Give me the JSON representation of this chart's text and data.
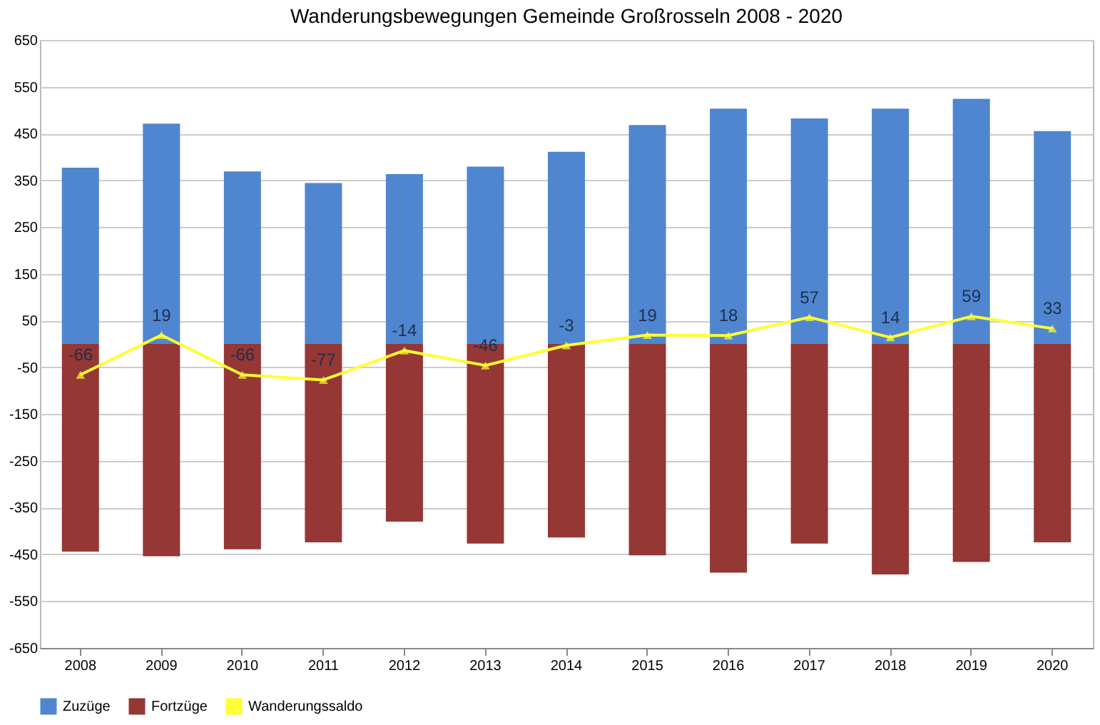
{
  "chart_data": {
    "type": "bar",
    "title": "Wanderungsbewegungen Gemeinde Großrosseln 2008 - 2020",
    "categories": [
      "2008",
      "2009",
      "2010",
      "2011",
      "2012",
      "2013",
      "2014",
      "2015",
      "2016",
      "2017",
      "2018",
      "2019",
      "2020"
    ],
    "series": [
      {
        "name": "Zuzüge",
        "color": "#4f86cf",
        "values": [
          377,
          471,
          369,
          344,
          363,
          379,
          411,
          468,
          503,
          482,
          503,
          524,
          455
        ]
      },
      {
        "name": "Fortzüge",
        "color": "#953735",
        "values": [
          -444,
          -454,
          -439,
          -424,
          -380,
          -427,
          -414,
          -452,
          -489,
          -427,
          -493,
          -466,
          -424
        ]
      },
      {
        "name": "Wanderungssaldo",
        "type": "line",
        "color": "#ffff33",
        "marker": "triangle",
        "values": [
          -66,
          19,
          -66,
          -77,
          -14,
          -46,
          -3,
          19,
          18,
          57,
          14,
          59,
          33
        ],
        "value_labels": [
          "-66",
          "19",
          "-66",
          "-77",
          "-14",
          "-46",
          "-3",
          "19",
          "18",
          "57",
          "14",
          "59",
          "33"
        ]
      }
    ],
    "ylim": [
      -650,
      650
    ],
    "yticks": [
      -650,
      -550,
      -450,
      -350,
      -250,
      -150,
      -50,
      50,
      150,
      250,
      350,
      450,
      550,
      650
    ],
    "stacked": true,
    "grid": "y",
    "legend": "bottom"
  }
}
